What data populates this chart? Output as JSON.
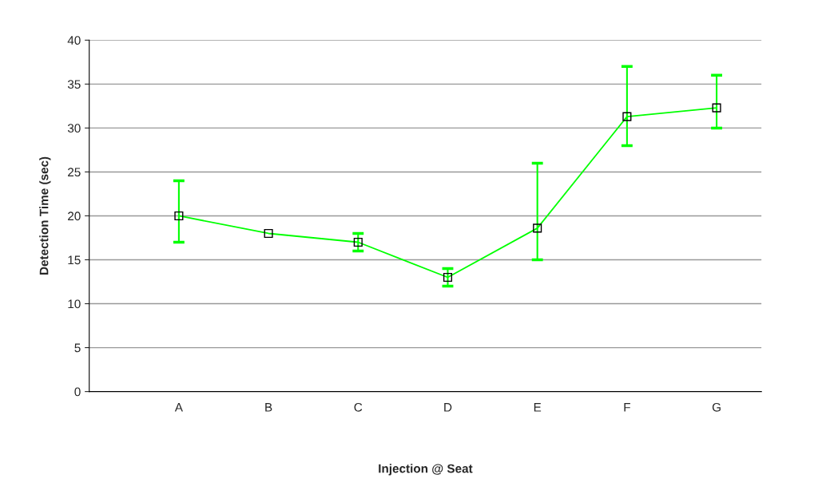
{
  "chart_data": {
    "type": "line",
    "xlabel": "Injection @ Seat",
    "ylabel": "Detection Time (sec)",
    "categories": [
      "A",
      "B",
      "C",
      "D",
      "E",
      "F",
      "G"
    ],
    "series": [
      {
        "color": "#00ff00",
        "values": [
          20,
          18,
          17,
          13,
          18.6,
          31.3,
          32.3
        ],
        "errors": [
          [
            17,
            24
          ],
          null,
          [
            16,
            18
          ],
          [
            12,
            14
          ],
          [
            15,
            26
          ],
          [
            28,
            37
          ],
          [
            30,
            36
          ]
        ]
      }
    ],
    "ylim": [
      0,
      40
    ],
    "yticks": [
      0,
      5,
      10,
      15,
      20,
      25,
      30,
      35,
      40
    ],
    "grid": "y",
    "marker": "square",
    "line_style": "solid"
  }
}
